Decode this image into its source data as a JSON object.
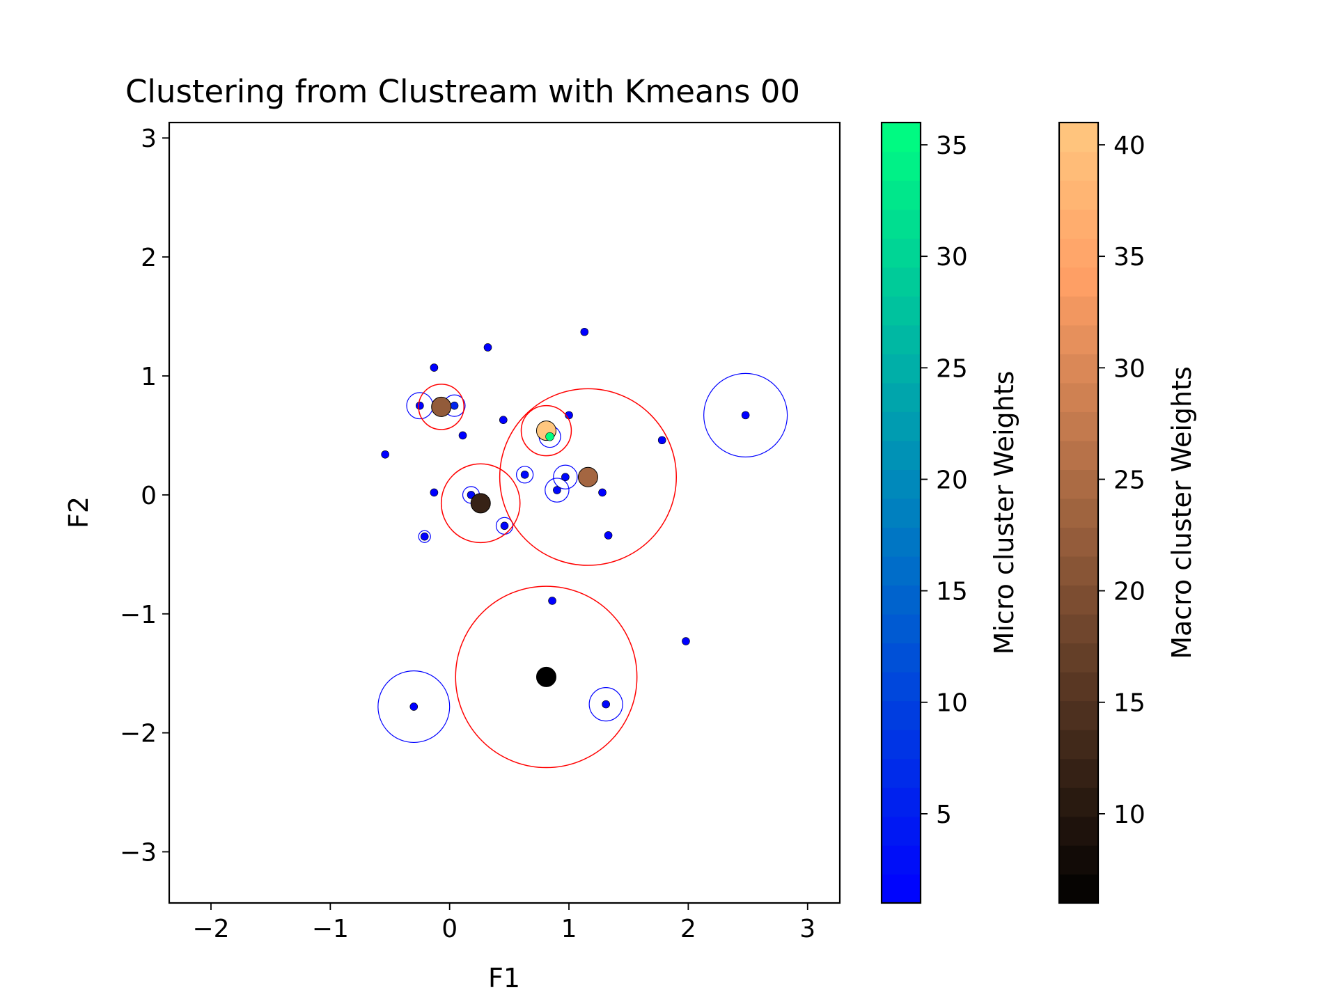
{
  "chart_data": {
    "type": "scatter",
    "title": "Clustering from Clustream with Kmeans 00",
    "xlabel": "F1",
    "ylabel": "F2",
    "xlim": [
      -2.35,
      3.27
    ],
    "ylim": [
      -3.43,
      3.13
    ],
    "grid": false,
    "aspect": "equal",
    "xticks": [
      {
        "value": -2,
        "label": "−2"
      },
      {
        "value": -1,
        "label": "−1"
      },
      {
        "value": 0,
        "label": "0"
      },
      {
        "value": 1,
        "label": "1"
      },
      {
        "value": 2,
        "label": "2"
      },
      {
        "value": 3,
        "label": "3"
      }
    ],
    "yticks": [
      {
        "value": -3,
        "label": "−3"
      },
      {
        "value": -2,
        "label": "−2"
      },
      {
        "value": -1,
        "label": "−1"
      },
      {
        "value": 0,
        "label": "0"
      },
      {
        "value": 1,
        "label": "1"
      },
      {
        "value": 2,
        "label": "2"
      },
      {
        "value": 3,
        "label": "3"
      }
    ],
    "micro_clusters": {
      "colormap": "winter",
      "edge_color": "#0000ff",
      "points": [
        {
          "x": -0.25,
          "y": 0.75,
          "r": 0.11,
          "w": 1
        },
        {
          "x": 0.04,
          "y": 0.75,
          "r": 0.09,
          "w": 6
        },
        {
          "x": -0.13,
          "y": 1.07,
          "r": 0,
          "w": 1
        },
        {
          "x": 0.32,
          "y": 1.24,
          "r": 0,
          "w": 1
        },
        {
          "x": 1.13,
          "y": 1.37,
          "r": 0,
          "w": 1
        },
        {
          "x": 0.45,
          "y": 0.63,
          "r": 0,
          "w": 1
        },
        {
          "x": 1.0,
          "y": 0.67,
          "r": 0,
          "w": 1
        },
        {
          "x": 0.11,
          "y": 0.5,
          "r": 0,
          "w": 1
        },
        {
          "x": 0.84,
          "y": 0.49,
          "r": 0.09,
          "w": 36
        },
        {
          "x": -0.54,
          "y": 0.34,
          "r": 0,
          "w": 1
        },
        {
          "x": 1.78,
          "y": 0.46,
          "r": 0,
          "w": 1
        },
        {
          "x": 2.48,
          "y": 0.67,
          "r": 0.35,
          "w": 1
        },
        {
          "x": 0.63,
          "y": 0.17,
          "r": 0.07,
          "w": 2
        },
        {
          "x": 0.97,
          "y": 0.15,
          "r": 0.1,
          "w": 2
        },
        {
          "x": 0.9,
          "y": 0.04,
          "r": 0.1,
          "w": 2
        },
        {
          "x": 1.28,
          "y": 0.02,
          "r": 0,
          "w": 1
        },
        {
          "x": -0.13,
          "y": 0.02,
          "r": 0,
          "w": 1
        },
        {
          "x": 0.18,
          "y": 0.0,
          "r": 0.07,
          "w": 2
        },
        {
          "x": 0.46,
          "y": -0.26,
          "r": 0.07,
          "w": 2
        },
        {
          "x": -0.21,
          "y": -0.35,
          "r": 0.05,
          "w": 1
        },
        {
          "x": 1.33,
          "y": -0.34,
          "r": 0,
          "w": 1
        },
        {
          "x": 0.86,
          "y": -0.89,
          "r": 0,
          "w": 1
        },
        {
          "x": 1.98,
          "y": -1.23,
          "r": 0,
          "w": 1
        },
        {
          "x": -0.3,
          "y": -1.78,
          "r": 0.3,
          "w": 1
        },
        {
          "x": 1.31,
          "y": -1.76,
          "r": 0.14,
          "w": 2
        }
      ]
    },
    "macro_clusters": {
      "colormap": "copper",
      "edge_color": "#ff0000",
      "points": [
        {
          "x": -0.07,
          "y": 0.74,
          "r": 0.19,
          "w": 22
        },
        {
          "x": 0.81,
          "y": 0.54,
          "r": 0.21,
          "w": 41
        },
        {
          "x": 1.16,
          "y": 0.15,
          "r": 0.74,
          "w": 24
        },
        {
          "x": 0.26,
          "y": -0.07,
          "r": 0.33,
          "w": 12
        },
        {
          "x": 0.81,
          "y": -1.53,
          "r": 0.76,
          "w": 6
        }
      ]
    },
    "colorbars": [
      {
        "label": "Micro cluster Weights",
        "colormap": "winter",
        "range": [
          1,
          36
        ],
        "ticks": [
          5,
          10,
          15,
          20,
          25,
          30,
          35
        ],
        "levels": 27
      },
      {
        "label": "Macro cluster Weights",
        "colormap": "copper",
        "range": [
          6,
          41
        ],
        "ticks": [
          10,
          15,
          20,
          25,
          30,
          35,
          40
        ],
        "levels": 27
      }
    ]
  }
}
